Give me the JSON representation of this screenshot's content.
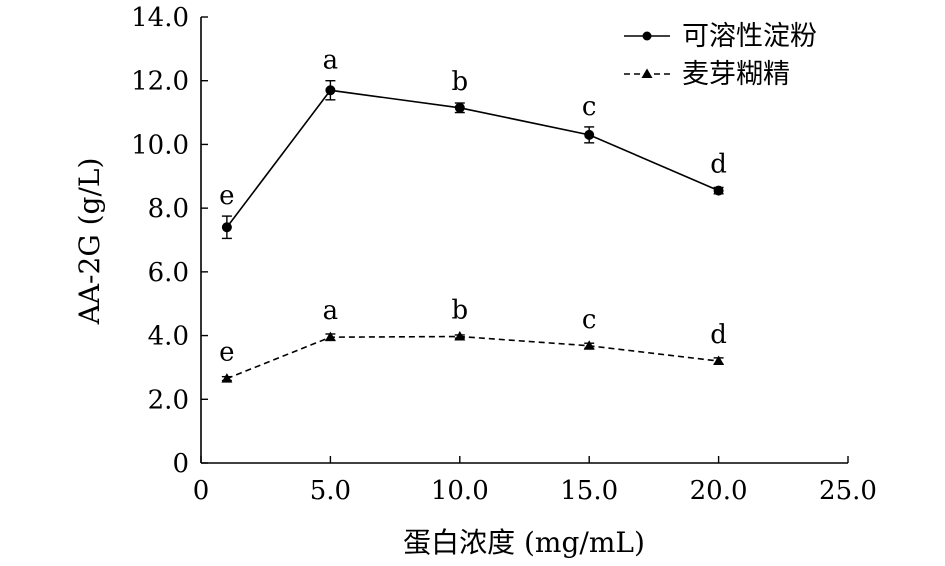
{
  "chart_data": {
    "type": "line",
    "xlabel": "蛋白浓度 (mg/mL)",
    "ylabel": "AA-2G (g/L)",
    "xlim": [
      0,
      25
    ],
    "ylim": [
      0,
      14
    ],
    "x_ticks": [
      0,
      5,
      10,
      15,
      20,
      25
    ],
    "x_tick_labels": [
      "0",
      "5.0",
      "10.0",
      "15.0",
      "20.0",
      "25.0"
    ],
    "y_ticks": [
      0,
      2,
      4,
      6,
      8,
      10,
      12,
      14
    ],
    "y_tick_labels": [
      "0",
      "2.0",
      "4.0",
      "6.0",
      "8.0",
      "10.0",
      "12.0",
      "14.0"
    ],
    "grid": false,
    "legend_position": "top-right",
    "x": [
      1,
      5,
      10,
      15,
      20
    ],
    "series": [
      {
        "name": "可溶性淀粉",
        "marker": "circle",
        "line_style": "solid",
        "values": [
          7.4,
          11.7,
          11.15,
          10.3,
          8.55
        ],
        "errors": [
          0.35,
          0.3,
          0.15,
          0.25,
          0.1
        ],
        "labels": [
          "e",
          "a",
          "b",
          "c",
          "d"
        ]
      },
      {
        "name": "麦芽糊精",
        "marker": "triangle",
        "line_style": "dashed",
        "values": [
          2.65,
          3.95,
          3.97,
          3.68,
          3.2
        ],
        "errors": [
          0.06,
          0.1,
          0.05,
          0.08,
          0.1
        ],
        "labels": [
          "e",
          "a",
          "b",
          "c",
          "d"
        ]
      }
    ]
  }
}
